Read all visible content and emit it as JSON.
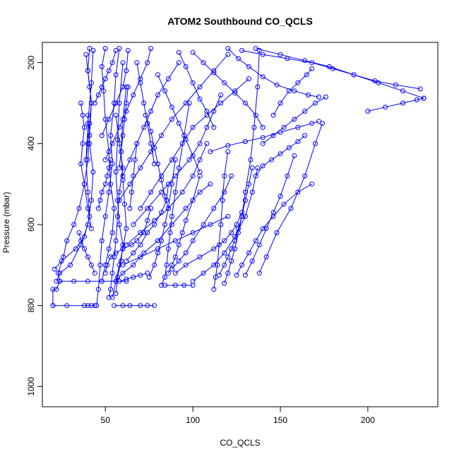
{
  "chart_data": {
    "type": "line",
    "title": "ATOM2 Southbound CO_QCLS",
    "xlabel": "CO_QCLS",
    "ylabel": "Pressure (mbar)",
    "xlim": [
      14,
      240
    ],
    "ylim": [
      1050,
      150
    ],
    "y_reversed": true,
    "grid": false,
    "legend": "none",
    "color": "#0000ff",
    "x_ticks": [
      50,
      100,
      150,
      200
    ],
    "y_ticks": [
      200,
      400,
      600,
      800,
      1000
    ],
    "x_tick_labels": [
      "50",
      "100",
      "150",
      "200"
    ],
    "y_tick_labels": [
      "200",
      "400",
      "600",
      "800",
      "1000"
    ],
    "series": [
      {
        "x": [
          20,
          20,
          22,
          24,
          23,
          26,
          28,
          32,
          35,
          38,
          40,
          41,
          42,
          40,
          41
        ],
        "y": [
          800,
          760,
          760,
          740,
          720,
          680,
          640,
          600,
          560,
          500,
          440,
          380,
          300,
          220,
          165
        ]
      },
      {
        "x": [
          20,
          28,
          38,
          40,
          42,
          44
        ],
        "y": [
          800,
          800,
          800,
          800,
          800,
          800
        ]
      },
      {
        "x": [
          22,
          24,
          30,
          36,
          40,
          42,
          43,
          41,
          40
        ],
        "y": [
          740,
          720,
          700,
          650,
          600,
          540,
          470,
          400,
          330
        ]
      },
      {
        "x": [
          24,
          32,
          40,
          48,
          56,
          62
        ],
        "y": [
          740,
          740,
          740,
          740,
          740,
          740
        ]
      },
      {
        "x": [
          21,
          25,
          33,
          38,
          41,
          40,
          39,
          40,
          42,
          43
        ],
        "y": [
          710,
          690,
          660,
          630,
          580,
          520,
          440,
          350,
          250,
          170
        ]
      },
      {
        "x": [
          45,
          46,
          47,
          48,
          50,
          52,
          54,
          53,
          55,
          56,
          58
        ],
        "y": [
          800,
          760,
          700,
          640,
          580,
          520,
          450,
          380,
          300,
          230,
          165
        ]
      },
      {
        "x": [
          48,
          50,
          52,
          54,
          55,
          53,
          52,
          50,
          49,
          48,
          50
        ],
        "y": [
          740,
          700,
          660,
          620,
          560,
          500,
          420,
          340,
          270,
          210,
          165
        ]
      },
      {
        "x": [
          52,
          53,
          54,
          55,
          56,
          57,
          58,
          60,
          58,
          56
        ],
        "y": [
          780,
          760,
          720,
          680,
          640,
          580,
          520,
          460,
          400,
          330
        ]
      },
      {
        "x": [
          54,
          56,
          58,
          60,
          62,
          61,
          60,
          59,
          60,
          62
        ],
        "y": [
          780,
          740,
          700,
          660,
          610,
          550,
          490,
          420,
          340,
          260
        ]
      },
      {
        "x": [
          56,
          57,
          59,
          60,
          58,
          57,
          56,
          57,
          58,
          60
        ],
        "y": [
          770,
          730,
          690,
          650,
          600,
          540,
          470,
          390,
          300,
          200
        ]
      },
      {
        "x": [
          55,
          60,
          64,
          70,
          74,
          78
        ],
        "y": [
          800,
          800,
          800,
          800,
          800,
          800
        ]
      },
      {
        "x": [
          58,
          62,
          66,
          70,
          74
        ],
        "y": [
          740,
          735,
          730,
          725,
          720
        ]
      },
      {
        "x": [
          50,
          51,
          53,
          56,
          60,
          65,
          68,
          72,
          74,
          76
        ],
        "y": [
          720,
          700,
          680,
          670,
          660,
          650,
          640,
          620,
          590,
          560
        ]
      },
      {
        "x": [
          62,
          66,
          70,
          74,
          78,
          82,
          85,
          86
        ],
        "y": [
          690,
          670,
          650,
          620,
          600,
          570,
          540,
          500
        ]
      },
      {
        "x": [
          75,
          78,
          80,
          82,
          84,
          86,
          88,
          90
        ],
        "y": [
          730,
          700,
          670,
          640,
          600,
          560,
          500,
          440
        ]
      },
      {
        "x": [
          82,
          84,
          85,
          86,
          87,
          88,
          90,
          92,
          95,
          98
        ],
        "y": [
          750,
          730,
          700,
          660,
          620,
          580,
          520,
          460,
          380,
          300
        ]
      },
      {
        "x": [
          84,
          90,
          95,
          100
        ],
        "y": [
          750,
          750,
          750,
          750
        ]
      },
      {
        "x": [
          86,
          88,
          90,
          92,
          94,
          96,
          100,
          104
        ],
        "y": [
          720,
          700,
          680,
          650,
          620,
          590,
          540,
          480
        ]
      },
      {
        "x": [
          88,
          92,
          96,
          100,
          106,
          112,
          118,
          122
        ],
        "y": [
          710,
          690,
          670,
          640,
          600,
          560,
          520,
          480
        ]
      },
      {
        "x": [
          90,
          96,
          104,
          112,
          118,
          122,
          125,
          128
        ],
        "y": [
          720,
          700,
          680,
          660,
          640,
          620,
          600,
          570
        ]
      },
      {
        "x": [
          100,
          106,
          112,
          118,
          124,
          130,
          134,
          137
        ],
        "y": [
          740,
          720,
          700,
          670,
          630,
          580,
          520,
          460
        ]
      },
      {
        "x": [
          112,
          113,
          114,
          115,
          116,
          117,
          118,
          120
        ],
        "y": [
          760,
          730,
          700,
          650,
          600,
          540,
          480,
          420
        ]
      },
      {
        "x": [
          115,
          118,
          120,
          122,
          124,
          126,
          128,
          130,
          132,
          134
        ],
        "y": [
          725,
          700,
          680,
          660,
          640,
          610,
          580,
          540,
          500,
          460
        ]
      },
      {
        "x": [
          118,
          120,
          122,
          124,
          126,
          128,
          130,
          133,
          135,
          137,
          138
        ],
        "y": [
          745,
          720,
          690,
          660,
          620,
          580,
          520,
          440,
          360,
          260,
          170
        ]
      },
      {
        "x": [
          125,
          128,
          132,
          136,
          140,
          146,
          152,
          160,
          168
        ],
        "y": [
          725,
          700,
          670,
          640,
          610,
          580,
          550,
          520,
          500
        ]
      },
      {
        "x": [
          130,
          134,
          138,
          142,
          146,
          150,
          154,
          158
        ],
        "y": [
          725,
          690,
          650,
          610,
          570,
          530,
          480,
          430
        ]
      },
      {
        "x": [
          138,
          142,
          148,
          156,
          164,
          170,
          174
        ],
        "y": [
          720,
          680,
          620,
          560,
          480,
          400,
          350
        ]
      },
      {
        "x": [
          56,
          60,
          66,
          72,
          80,
          88,
          96,
          104,
          110
        ],
        "y": [
          740,
          720,
          700,
          670,
          640,
          600,
          560,
          520,
          500
        ]
      },
      {
        "x": [
          60,
          70,
          80,
          90,
          100,
          110,
          120
        ],
        "y": [
          700,
          680,
          660,
          640,
          620,
          600,
          580
        ]
      },
      {
        "x": [
          62,
          70,
          78,
          86,
          94,
          100,
          104,
          108
        ],
        "y": [
          650,
          620,
          590,
          560,
          520,
          480,
          440,
          400
        ]
      },
      {
        "x": [
          66,
          74,
          82,
          90,
          98,
          104,
          108,
          112,
          116
        ],
        "y": [
          600,
          560,
          520,
          480,
          440,
          400,
          360,
          320,
          280
        ]
      },
      {
        "x": [
          70,
          76,
          82,
          88,
          94,
          100,
          108,
          116,
          124,
          132
        ],
        "y": [
          560,
          520,
          480,
          440,
          400,
          360,
          330,
          300,
          270,
          240
        ]
      },
      {
        "x": [
          58,
          64,
          70,
          76,
          82,
          88,
          96,
          104,
          112,
          120
        ],
        "y": [
          540,
          500,
          460,
          420,
          380,
          340,
          300,
          260,
          220,
          180
        ]
      },
      {
        "x": [
          60,
          64,
          68,
          72,
          76,
          80,
          86,
          92
        ],
        "y": [
          480,
          440,
          400,
          360,
          320,
          280,
          240,
          200
        ]
      },
      {
        "x": [
          50,
          54,
          58,
          62,
          66,
          70,
          74,
          76
        ],
        "y": [
          440,
          400,
          360,
          320,
          280,
          240,
          200,
          165
        ]
      },
      {
        "x": [
          48,
          52,
          56,
          60,
          62,
          63
        ],
        "y": [
          380,
          340,
          300,
          260,
          220,
          170
        ]
      },
      {
        "x": [
          44,
          46,
          48,
          50,
          52,
          54,
          56
        ],
        "y": [
          300,
          280,
          260,
          240,
          220,
          200,
          170
        ]
      },
      {
        "x": [
          128,
          140,
          154,
          168,
          180,
          192,
          204,
          216,
          230
        ],
        "y": [
          170,
          180,
          190,
          200,
          215,
          230,
          245,
          255,
          265
        ]
      },
      {
        "x": [
          136,
          150,
          164,
          178,
          192,
          206,
          220,
          232
        ],
        "y": [
          165,
          180,
          195,
          210,
          230,
          250,
          270,
          288
        ]
      },
      {
        "x": [
          200,
          210,
          220,
          228,
          232
        ],
        "y": [
          320,
          310,
          300,
          292,
          288
        ]
      },
      {
        "x": [
          120,
          126,
          132,
          140,
          148,
          158,
          166,
          172
        ],
        "y": [
          165,
          190,
          210,
          235,
          255,
          270,
          280,
          285
        ]
      },
      {
        "x": [
          110,
          120,
          130,
          140,
          150,
          160,
          168,
          172
        ],
        "y": [
          420,
          405,
          395,
          385,
          372,
          360,
          350,
          345
        ]
      },
      {
        "x": [
          136,
          140,
          145,
          150,
          155,
          160,
          164
        ],
        "y": [
          480,
          455,
          440,
          425,
          410,
          395,
          380
        ]
      },
      {
        "x": [
          140,
          146,
          152,
          158,
          164,
          170,
          176
        ],
        "y": [
          400,
          380,
          360,
          340,
          320,
          300,
          285
        ]
      },
      {
        "x": [
          146,
          150,
          155,
          160,
          165,
          168
        ],
        "y": [
          330,
          300,
          270,
          250,
          230,
          215
        ]
      },
      {
        "x": [
          100,
          106,
          112,
          118,
          124,
          130,
          136,
          140
        ],
        "y": [
          175,
          200,
          225,
          250,
          275,
          300,
          330,
          360
        ]
      },
      {
        "x": [
          92,
          96,
          100,
          104,
          108,
          112
        ],
        "y": [
          175,
          210,
          250,
          290,
          320,
          360
        ]
      },
      {
        "x": [
          80,
          84,
          88,
          92,
          96,
          100,
          104
        ],
        "y": [
          230,
          270,
          310,
          350,
          390,
          430,
          470
        ]
      },
      {
        "x": [
          73,
          76,
          78,
          80,
          82,
          84,
          86
        ],
        "y": [
          330,
          370,
          410,
          450,
          490,
          530,
          560
        ]
      },
      {
        "x": [
          68,
          70,
          72,
          74,
          76,
          78
        ],
        "y": [
          200,
          250,
          300,
          350,
          400,
          450
        ]
      },
      {
        "x": [
          36,
          37,
          38,
          37,
          36,
          38,
          40,
          42
        ],
        "y": [
          300,
          330,
          360,
          400,
          450,
          500,
          560,
          610
        ]
      },
      {
        "x": [
          39,
          40,
          41,
          42,
          41,
          40,
          39
        ],
        "y": [
          180,
          220,
          260,
          300,
          350,
          400,
          440
        ]
      },
      {
        "x": [
          35,
          36,
          38,
          40,
          42,
          44
        ],
        "y": [
          620,
          640,
          660,
          680,
          700,
          720
        ]
      },
      {
        "x": [
          46,
          47,
          48,
          50,
          51,
          52,
          53
        ],
        "y": [
          560,
          540,
          520,
          500,
          480,
          460,
          440
        ]
      },
      {
        "x": [
          58,
          59,
          60,
          61,
          62,
          63
        ],
        "y": [
          460,
          420,
          380,
          340,
          300,
          260
        ]
      },
      {
        "x": [
          64,
          65,
          66,
          67,
          68
        ],
        "y": [
          560,
          520,
          480,
          440,
          400
        ]
      }
    ]
  }
}
